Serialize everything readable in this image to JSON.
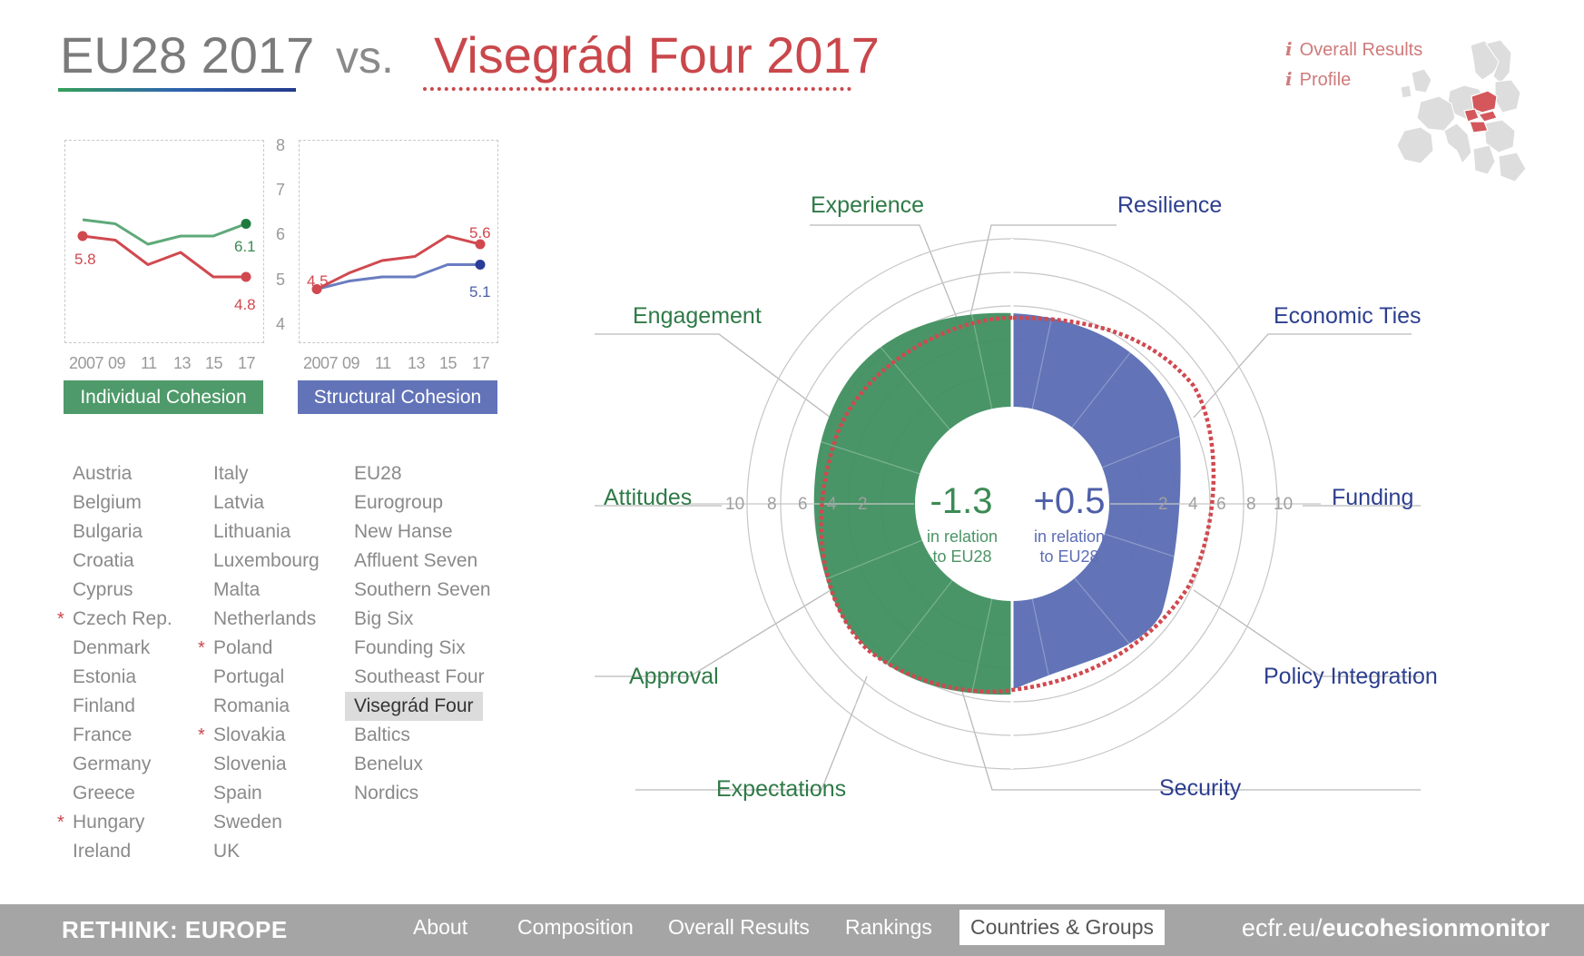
{
  "title": {
    "left": "EU28 2017",
    "vs": "vs.",
    "right": "Visegrád Four 2017"
  },
  "info_links": [
    "Overall Results",
    "Profile"
  ],
  "info_icon": "i",
  "mini_charts": {
    "y_ticks": [
      "8",
      "7",
      "6",
      "5",
      "4"
    ],
    "x_ticks": [
      "2007",
      "09",
      "11",
      "13",
      "15",
      "17"
    ],
    "individual": {
      "label": "Individual Cohesion",
      "color": "#4e9a6a",
      "start_label": "5.8",
      "green_end_label": "6.1",
      "red_end_label": "4.8"
    },
    "structural": {
      "label": "Structural Cohesion",
      "color": "#6273b8",
      "start_label": "4.5",
      "red_end_label": "5.6",
      "blue_end_label": "5.1"
    }
  },
  "chart_data": [
    {
      "type": "line",
      "title": "Individual Cohesion",
      "x": [
        2007,
        2009,
        2011,
        2013,
        2015,
        2017
      ],
      "ylim": [
        4,
        8
      ],
      "series": [
        {
          "name": "EU28",
          "color": "#5fa97a",
          "values": [
            6.2,
            6.1,
            5.6,
            5.8,
            5.8,
            6.1
          ]
        },
        {
          "name": "Visegrád Four",
          "color": "#d0494f",
          "values": [
            5.8,
            5.7,
            5.1,
            5.4,
            4.8,
            4.8
          ]
        }
      ]
    },
    {
      "type": "line",
      "title": "Structural Cohesion",
      "x": [
        2007,
        2009,
        2011,
        2013,
        2015,
        2017
      ],
      "ylim": [
        4,
        8
      ],
      "series": [
        {
          "name": "EU28",
          "color": "#6a7cc0",
          "values": [
            4.5,
            4.7,
            4.8,
            4.8,
            5.1,
            5.1
          ]
        },
        {
          "name": "Visegrád Four",
          "color": "#d0494f",
          "values": [
            4.5,
            4.9,
            5.2,
            5.3,
            5.8,
            5.6
          ]
        }
      ]
    }
  ],
  "countries": {
    "col1": [
      {
        "name": "Austria",
        "star": false
      },
      {
        "name": "Belgium",
        "star": false
      },
      {
        "name": "Bulgaria",
        "star": false
      },
      {
        "name": "Croatia",
        "star": false
      },
      {
        "name": "Cyprus",
        "star": false
      },
      {
        "name": "Czech Rep.",
        "star": true
      },
      {
        "name": "Denmark",
        "star": false
      },
      {
        "name": "Estonia",
        "star": false
      },
      {
        "name": "Finland",
        "star": false
      },
      {
        "name": "France",
        "star": false
      },
      {
        "name": "Germany",
        "star": false
      },
      {
        "name": "Greece",
        "star": false
      },
      {
        "name": "Hungary",
        "star": true
      },
      {
        "name": "Ireland",
        "star": false
      }
    ],
    "col2": [
      {
        "name": "Italy",
        "star": false
      },
      {
        "name": "Latvia",
        "star": false
      },
      {
        "name": "Lithuania",
        "star": false
      },
      {
        "name": "Luxembourg",
        "star": false
      },
      {
        "name": "Malta",
        "star": false
      },
      {
        "name": "Netherlands",
        "star": false
      },
      {
        "name": "Poland",
        "star": true
      },
      {
        "name": "Portugal",
        "star": false
      },
      {
        "name": "Romania",
        "star": false
      },
      {
        "name": "Slovakia",
        "star": true
      },
      {
        "name": "Slovenia",
        "star": false
      },
      {
        "name": "Spain",
        "star": false
      },
      {
        "name": "Sweden",
        "star": false
      },
      {
        "name": "UK",
        "star": false
      }
    ],
    "col3": [
      {
        "name": "EU28",
        "selected": false
      },
      {
        "name": "Eurogroup",
        "selected": false
      },
      {
        "name": "New Hanse",
        "selected": false
      },
      {
        "name": "Affluent Seven",
        "selected": false
      },
      {
        "name": "Southern Seven",
        "selected": false
      },
      {
        "name": "Big Six",
        "selected": false
      },
      {
        "name": "Founding Six",
        "selected": false
      },
      {
        "name": "Southeast Four",
        "selected": false
      },
      {
        "name": "Visegrád Four",
        "selected": true
      },
      {
        "name": "Baltics",
        "selected": false
      },
      {
        "name": "Benelux",
        "selected": false
      },
      {
        "name": "Nordics",
        "selected": false
      }
    ]
  },
  "star_symbol": "*",
  "radial": {
    "left_labels": [
      "Experience",
      "Engagement",
      "Attitudes",
      "Approval",
      "Expectations"
    ],
    "right_labels": [
      "Resilience",
      "Economic Ties",
      "Funding",
      "Policy Integration",
      "Security"
    ],
    "left_ticks": [
      "10",
      "8",
      "6",
      "4",
      "2"
    ],
    "right_ticks": [
      "2",
      "4",
      "6",
      "8",
      "10"
    ],
    "left_value": "-1.3",
    "right_value": "+0.5",
    "relation_line1": "in relation",
    "relation_line2": "to EU28",
    "colors": {
      "individual": "#3f8f5f",
      "structural": "#5d6fb5",
      "group": "#d0494f"
    }
  },
  "nav": {
    "brand": "RETHINK: EUROPE",
    "items": [
      "About",
      "Composition",
      "Overall Results",
      "Rankings",
      "Countries & Groups"
    ],
    "active": "Countries & Groups",
    "site_prefix": "ecfr.eu/",
    "site_bold": "eucohesionmonitor"
  }
}
